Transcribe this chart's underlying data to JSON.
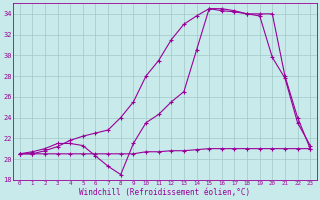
{
  "xlabel": "Windchill (Refroidissement éolien,°C)",
  "bg_color": "#c8eaea",
  "line_color": "#990099",
  "xlim": [
    -0.5,
    23.5
  ],
  "ylim": [
    18,
    35
  ],
  "yticks": [
    18,
    20,
    22,
    24,
    26,
    28,
    30,
    32,
    34
  ],
  "xticks": [
    0,
    1,
    2,
    3,
    4,
    5,
    6,
    7,
    8,
    9,
    10,
    11,
    12,
    13,
    14,
    15,
    16,
    17,
    18,
    19,
    20,
    21,
    22,
    23
  ],
  "grid_color": "#a0c8c8",
  "series": [
    {
      "x": [
        0,
        1,
        2,
        3,
        4,
        5,
        6,
        7,
        8,
        9,
        10,
        11,
        12,
        13,
        14,
        15,
        16,
        17,
        18,
        19,
        20,
        21,
        22,
        23
      ],
      "y": [
        20.5,
        20.5,
        20.5,
        20.5,
        20.5,
        20.5,
        20.5,
        20.5,
        20.5,
        20.5,
        20.7,
        20.7,
        20.8,
        20.8,
        20.9,
        21.0,
        21.0,
        21.0,
        21.0,
        21.0,
        21.0,
        21.0,
        21.0,
        21.0
      ]
    },
    {
      "x": [
        0,
        1,
        2,
        3,
        4,
        5,
        6,
        7,
        8,
        9,
        10,
        11,
        12,
        13,
        14,
        15,
        16,
        17,
        18,
        19,
        20,
        21,
        22,
        23
      ],
      "y": [
        20.5,
        20.7,
        21.0,
        21.5,
        21.5,
        21.3,
        20.3,
        19.3,
        18.5,
        21.5,
        23.5,
        24.3,
        25.5,
        26.5,
        30.5,
        34.5,
        34.3,
        34.2,
        34.0,
        33.8,
        29.8,
        27.8,
        23.5,
        21.3
      ]
    },
    {
      "x": [
        0,
        1,
        2,
        3,
        4,
        5,
        6,
        7,
        8,
        9,
        10,
        11,
        12,
        13,
        14,
        15,
        16,
        17,
        18,
        19,
        20,
        21,
        22,
        23
      ],
      "y": [
        20.5,
        20.5,
        20.8,
        21.2,
        21.8,
        22.2,
        22.5,
        22.8,
        24.0,
        25.5,
        28.0,
        29.5,
        31.5,
        33.0,
        33.8,
        34.5,
        34.5,
        34.3,
        34.0,
        34.0,
        34.0,
        28.0,
        24.0,
        21.0
      ]
    }
  ]
}
